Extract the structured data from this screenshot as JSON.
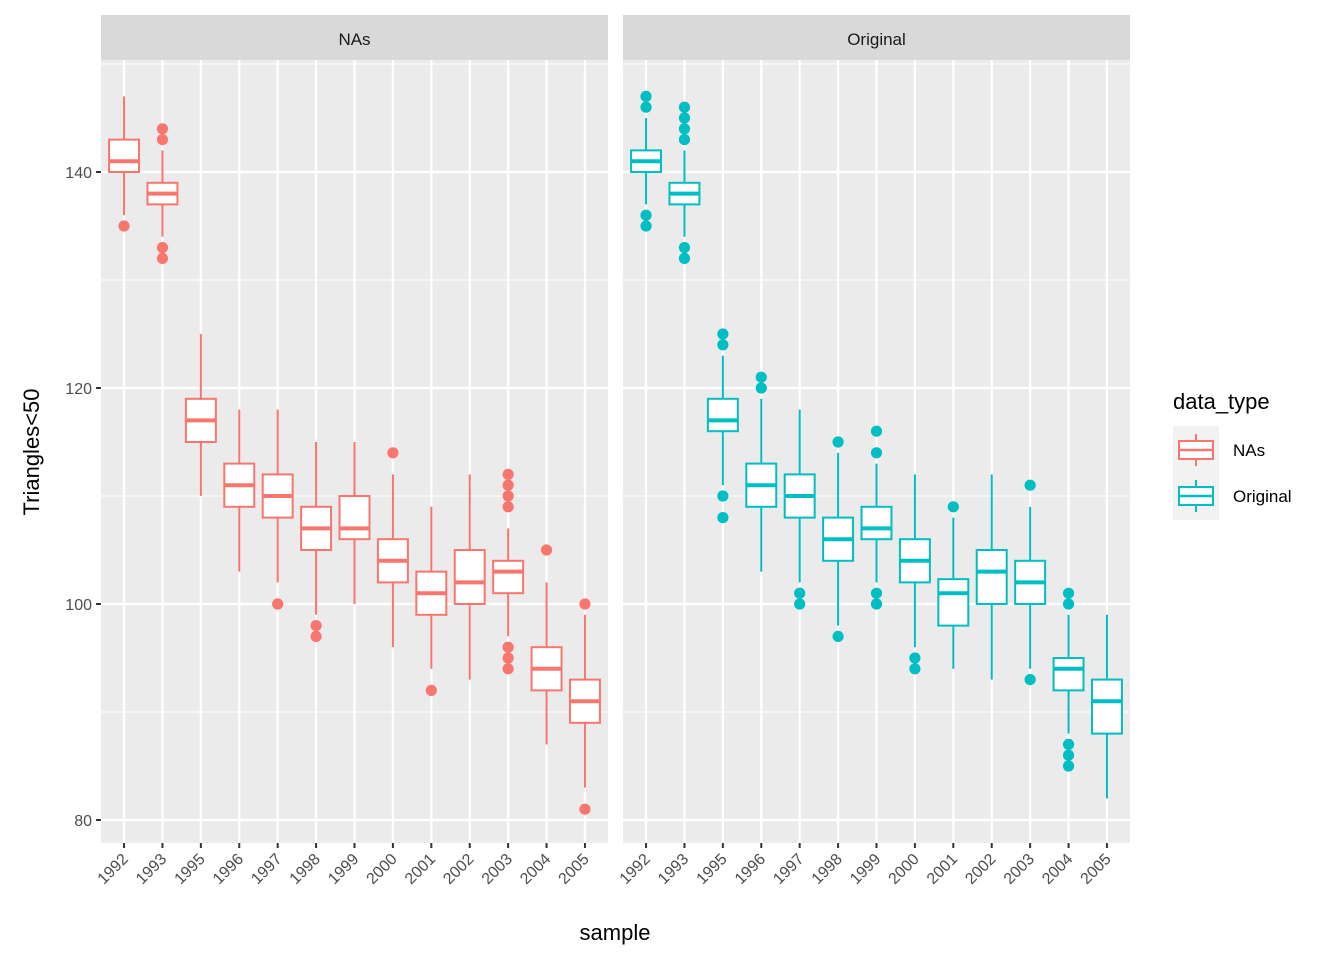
{
  "chart_data": {
    "type": "boxplot",
    "facet_by": "data_type",
    "facets": [
      "NAs",
      "Original"
    ],
    "categories": [
      "1992",
      "1993",
      "1995",
      "1996",
      "1997",
      "1998",
      "1999",
      "2000",
      "2001",
      "2002",
      "2003",
      "2004",
      "2005"
    ],
    "xlabel": "sample",
    "ylabel": "Triangles<50",
    "ylim": [
      78,
      150
    ],
    "yticks": [
      80,
      100,
      120,
      140
    ],
    "grid": true,
    "legend": {
      "title": "data_type",
      "position": "right",
      "entries": [
        {
          "label": "NAs",
          "color": "#F8766D"
        },
        {
          "label": "Original",
          "color": "#00BFC4"
        }
      ]
    },
    "series": [
      {
        "name": "NAs",
        "color": "#F8766D",
        "boxes": [
          {
            "x": "1992",
            "lower_whisker": 136,
            "q1": 140,
            "median": 141,
            "q3": 143,
            "upper_whisker": 147,
            "outliers": [
              135
            ]
          },
          {
            "x": "1993",
            "lower_whisker": 134,
            "q1": 137,
            "median": 138,
            "q3": 139,
            "upper_whisker": 142,
            "outliers": [
              144,
              143,
              133,
              132
            ]
          },
          {
            "x": "1995",
            "lower_whisker": 110,
            "q1": 115,
            "median": 117,
            "q3": 119,
            "upper_whisker": 125,
            "outliers": []
          },
          {
            "x": "1996",
            "lower_whisker": 103,
            "q1": 109,
            "median": 111,
            "q3": 113,
            "upper_whisker": 118,
            "outliers": []
          },
          {
            "x": "1997",
            "lower_whisker": 102,
            "q1": 108,
            "median": 110,
            "q3": 112,
            "upper_whisker": 118,
            "outliers": [
              100
            ]
          },
          {
            "x": "1998",
            "lower_whisker": 99,
            "q1": 105,
            "median": 107,
            "q3": 109,
            "upper_whisker": 115,
            "outliers": [
              98,
              97
            ]
          },
          {
            "x": "1999",
            "lower_whisker": 100,
            "q1": 106,
            "median": 107,
            "q3": 110,
            "upper_whisker": 115,
            "outliers": []
          },
          {
            "x": "2000",
            "lower_whisker": 96,
            "q1": 102,
            "median": 104,
            "q3": 106,
            "upper_whisker": 112,
            "outliers": [
              114
            ]
          },
          {
            "x": "2001",
            "lower_whisker": 94,
            "q1": 99,
            "median": 101,
            "q3": 103,
            "upper_whisker": 109,
            "outliers": [
              92
            ]
          },
          {
            "x": "2002",
            "lower_whisker": 93,
            "q1": 100,
            "median": 102,
            "q3": 105,
            "upper_whisker": 112,
            "outliers": []
          },
          {
            "x": "2003",
            "lower_whisker": 97,
            "q1": 101,
            "median": 103,
            "q3": 104,
            "upper_whisker": 107,
            "outliers": [
              112,
              111,
              110,
              109,
              96,
              95,
              94
            ]
          },
          {
            "x": "2004",
            "lower_whisker": 87,
            "q1": 92,
            "median": 94,
            "q3": 96,
            "upper_whisker": 102,
            "outliers": [
              105
            ]
          },
          {
            "x": "2005",
            "lower_whisker": 83,
            "q1": 89,
            "median": 91,
            "q3": 93,
            "upper_whisker": 99,
            "outliers": [
              100,
              81
            ]
          }
        ]
      },
      {
        "name": "Original",
        "color": "#00BFC4",
        "boxes": [
          {
            "x": "1992",
            "lower_whisker": 137,
            "q1": 140,
            "median": 141,
            "q3": 142,
            "upper_whisker": 145,
            "outliers": [
              147,
              146,
              136,
              135
            ]
          },
          {
            "x": "1993",
            "lower_whisker": 134,
            "q1": 137,
            "median": 138,
            "q3": 139,
            "upper_whisker": 142,
            "outliers": [
              146,
              145,
              144,
              143,
              133,
              132
            ]
          },
          {
            "x": "1995",
            "lower_whisker": 111,
            "q1": 116,
            "median": 117,
            "q3": 119,
            "upper_whisker": 123,
            "outliers": [
              125,
              124,
              110,
              108
            ]
          },
          {
            "x": "1996",
            "lower_whisker": 103,
            "q1": 109,
            "median": 111,
            "q3": 113,
            "upper_whisker": 119,
            "outliers": [
              121,
              120
            ]
          },
          {
            "x": "1997",
            "lower_whisker": 102,
            "q1": 108,
            "median": 110,
            "q3": 112,
            "upper_whisker": 118,
            "outliers": [
              101,
              100
            ]
          },
          {
            "x": "1998",
            "lower_whisker": 98,
            "q1": 104,
            "median": 106,
            "q3": 108,
            "upper_whisker": 114,
            "outliers": [
              115,
              97
            ]
          },
          {
            "x": "1999",
            "lower_whisker": 102,
            "q1": 106,
            "median": 107,
            "q3": 109,
            "upper_whisker": 113,
            "outliers": [
              116,
              114,
              101,
              100
            ]
          },
          {
            "x": "2000",
            "lower_whisker": 96,
            "q1": 102,
            "median": 104,
            "q3": 106,
            "upper_whisker": 112,
            "outliers": [
              95,
              94
            ]
          },
          {
            "x": "2001",
            "lower_whisker": 94,
            "q1": 98,
            "median": 101,
            "q3": 102.3,
            "upper_whisker": 108,
            "outliers": [
              109
            ]
          },
          {
            "x": "2002",
            "lower_whisker": 93,
            "q1": 100,
            "median": 103,
            "q3": 105,
            "upper_whisker": 112,
            "outliers": []
          },
          {
            "x": "2003",
            "lower_whisker": 94,
            "q1": 100,
            "median": 102,
            "q3": 104,
            "upper_whisker": 109,
            "outliers": [
              111,
              93
            ]
          },
          {
            "x": "2004",
            "lower_whisker": 88,
            "q1": 92,
            "median": 94,
            "q3": 95,
            "upper_whisker": 99,
            "outliers": [
              101,
              100,
              87,
              86,
              85
            ]
          },
          {
            "x": "2005",
            "lower_whisker": 82,
            "q1": 88,
            "median": 91,
            "q3": 93,
            "upper_whisker": 99,
            "outliers": []
          }
        ]
      }
    ]
  }
}
